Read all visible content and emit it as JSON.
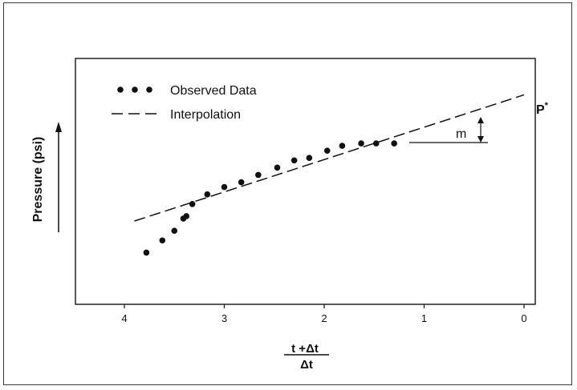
{
  "chart_data": {
    "type": "scatter",
    "title": "",
    "ylabel": "Pressure (psi)",
    "xlabel": {
      "numerator": "t +Δt",
      "denominator": "Δt"
    },
    "xlim": [
      4.5,
      0
    ],
    "x_ticks": [
      "4",
      "3",
      "2",
      "1",
      "0"
    ],
    "x_tick_values": [
      4,
      3,
      2,
      1,
      0
    ],
    "ylim": [
      0,
      1
    ],
    "grid": false,
    "legend": {
      "placement": "top-left",
      "entries": [
        {
          "label": "Observed Data",
          "marker": "dots"
        },
        {
          "label": "Interpolation",
          "marker": "dashes"
        }
      ]
    },
    "series": [
      {
        "name": "Observed Data",
        "style": "points",
        "x": [
          3.78,
          3.62,
          3.5,
          3.41,
          3.38,
          3.32,
          3.17,
          3.0,
          2.83,
          2.66,
          2.47,
          2.3,
          2.15,
          1.97,
          1.82,
          1.63,
          1.48,
          1.3
        ],
        "y": [
          0.2,
          0.25,
          0.29,
          0.34,
          0.35,
          0.4,
          0.44,
          0.47,
          0.49,
          0.52,
          0.55,
          0.58,
          0.59,
          0.62,
          0.64,
          0.65,
          0.65,
          0.65
        ]
      },
      {
        "name": "Interpolation",
        "style": "dashed-line",
        "x": [
          3.9,
          0
        ],
        "y": [
          0.33,
          0.85
        ]
      }
    ],
    "annotations": {
      "p_star": {
        "label": "P",
        "superscript": "*",
        "x": 0,
        "y": 0.85
      },
      "slope": {
        "label": "m",
        "x_from": 1.2,
        "x_to": 0.4,
        "y": 0.66
      }
    },
    "y_arrow": true
  }
}
